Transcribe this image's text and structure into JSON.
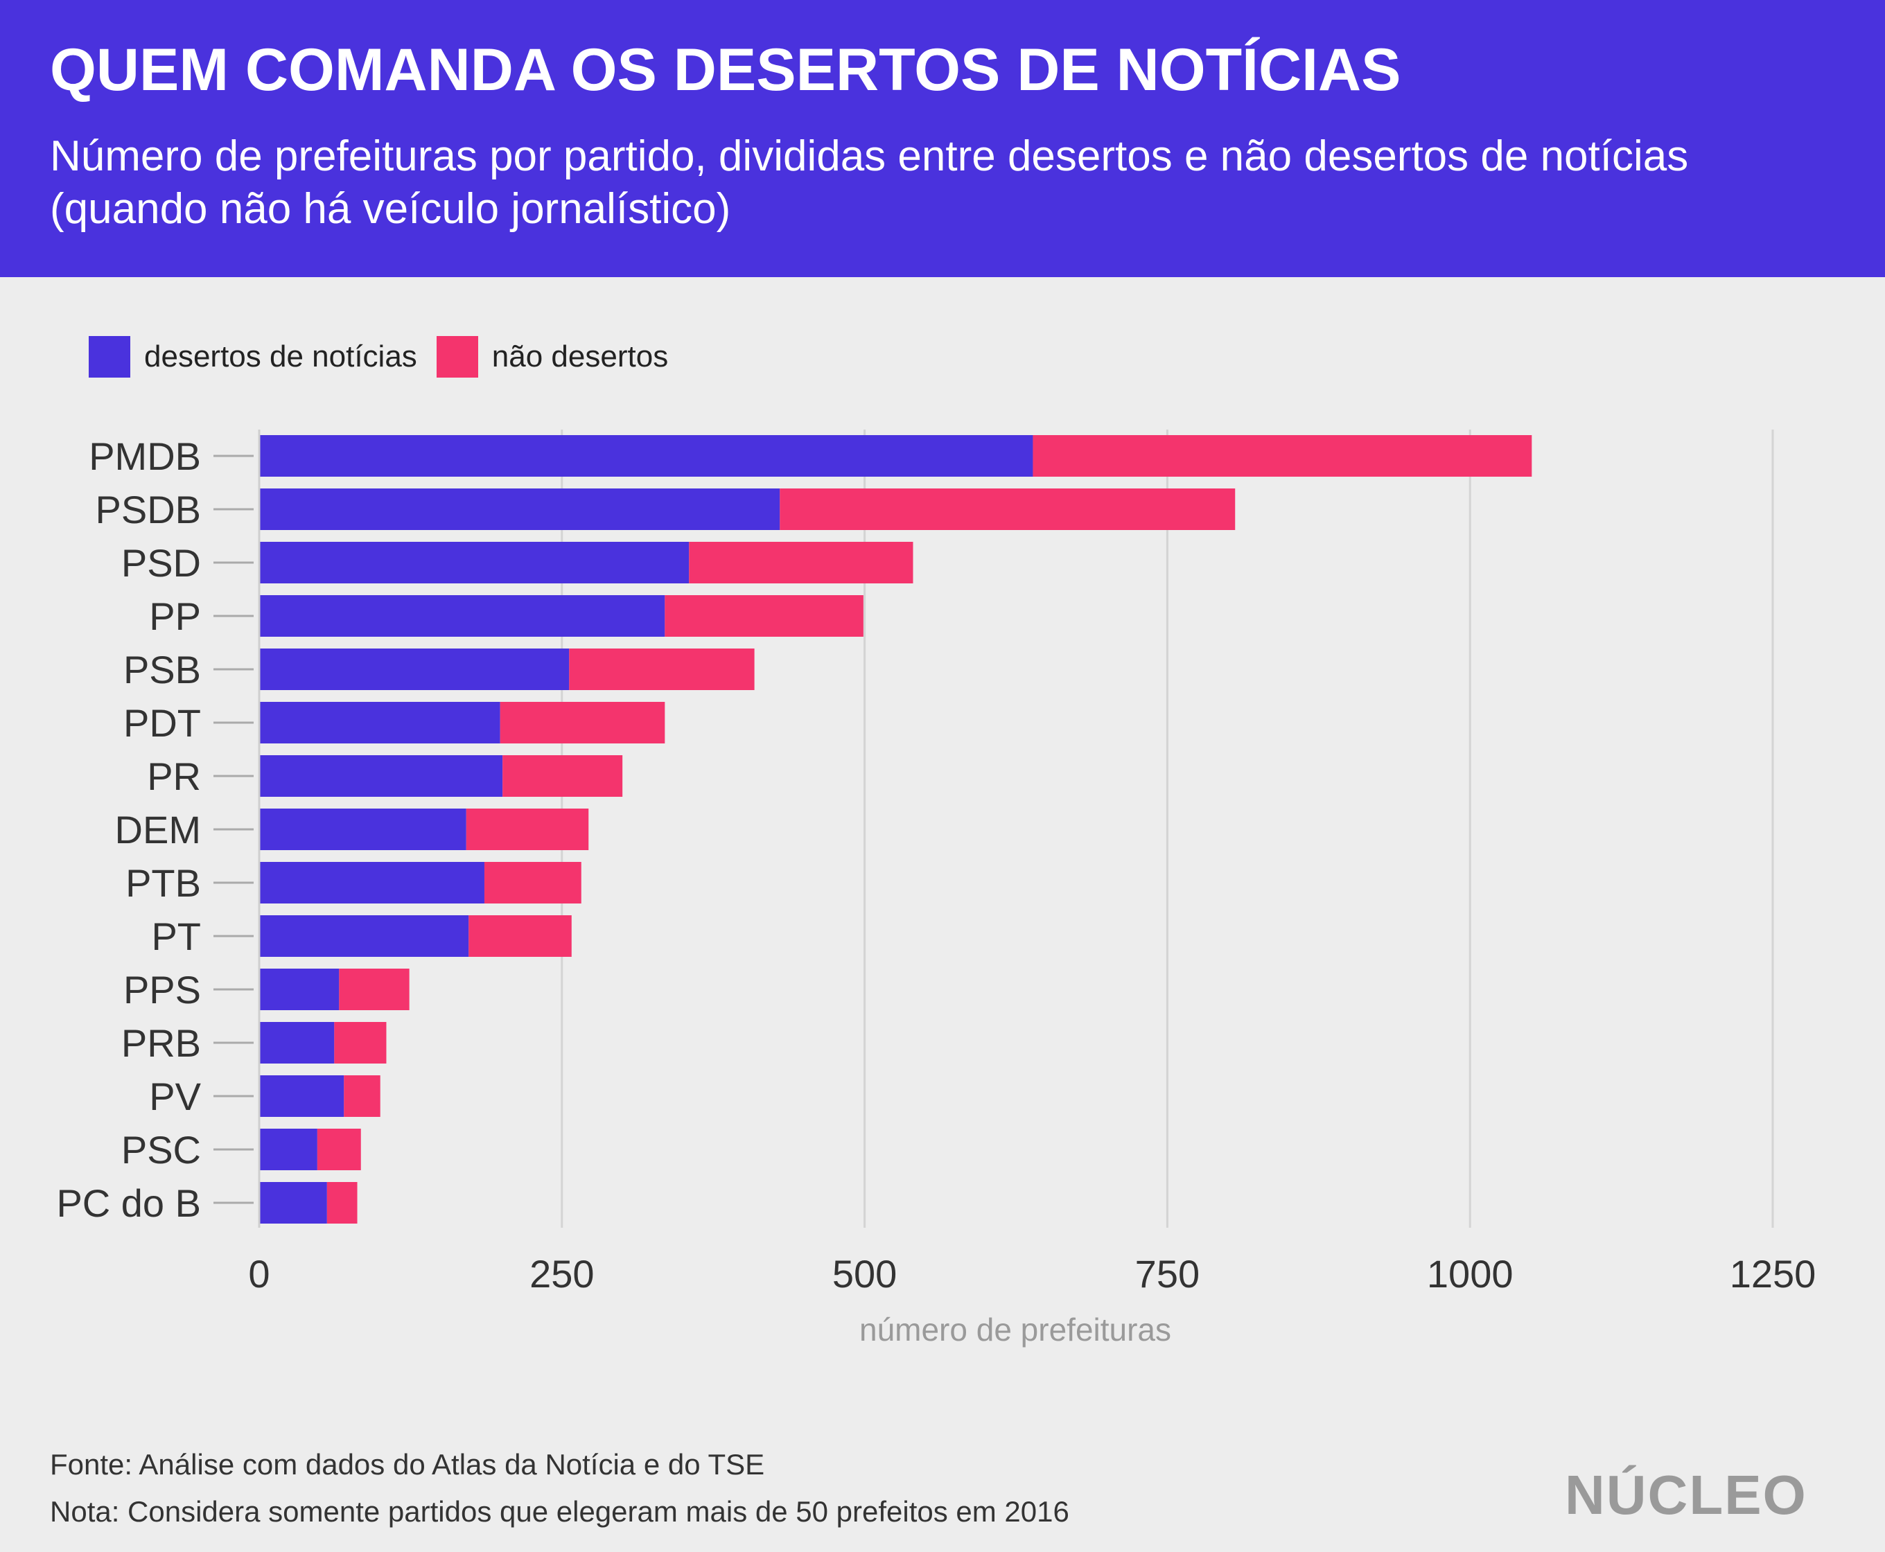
{
  "header": {
    "title": "QUEM COMANDA OS DESERTOS DE NOTÍCIAS",
    "subtitle": "Número de prefeituras por partido, divididas entre desertos e não desertos de notícias (quando não há veículo jornalístico)"
  },
  "legend": {
    "items": [
      {
        "label": "desertos de notícias",
        "color": "#4a32dd"
      },
      {
        "label": "não desertos",
        "color": "#f4346d"
      }
    ]
  },
  "chart_data": {
    "type": "bar",
    "orientation": "horizontal",
    "stacked": true,
    "categories": [
      "PMDB",
      "PSDB",
      "PSD",
      "PP",
      "PSB",
      "PDT",
      "PR",
      "DEM",
      "PTB",
      "PT",
      "PPS",
      "PRB",
      "PV",
      "PSC",
      "PC do B"
    ],
    "series": [
      {
        "name": "desertos de notícias",
        "color": "#4a32dd",
        "values": [
          639,
          430,
          355,
          335,
          256,
          199,
          201,
          171,
          186,
          173,
          66,
          62,
          70,
          48,
          56
        ]
      },
      {
        "name": "não desertos",
        "color": "#f4346d",
        "values": [
          412,
          376,
          185,
          164,
          153,
          136,
          99,
          101,
          80,
          85,
          58,
          43,
          30,
          36,
          25
        ]
      }
    ],
    "xlabel": "número de prefeituras",
    "ylabel": "",
    "xlim": [
      0,
      1250
    ],
    "xticks": [
      0,
      250,
      500,
      750,
      1000,
      1250
    ],
    "grid": "vertical"
  },
  "footer": {
    "source": "Fonte: Análise com dados do Atlas da Notícia e do TSE",
    "note": "Nota: Considera somente partidos que elegeram mais de 50 prefeitos em 2016",
    "logo": "NÚCLEO"
  }
}
